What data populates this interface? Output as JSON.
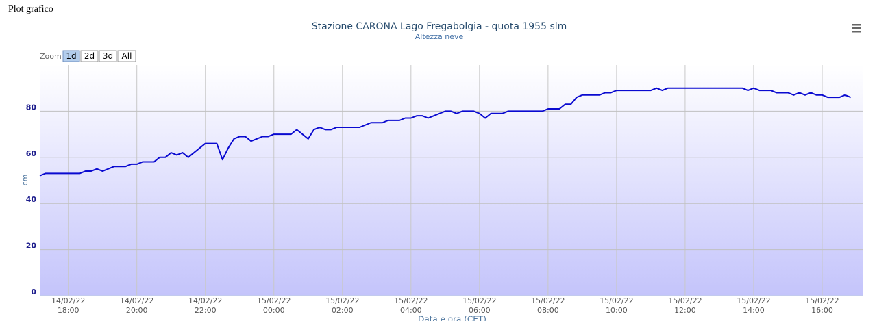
{
  "heading": "Plot grafico",
  "zoom": {
    "label": "Zoom",
    "buttons": [
      "1d",
      "2d",
      "3d",
      "All"
    ],
    "selected": 0
  },
  "chart_data": {
    "type": "line",
    "title": "Stazione CARONA Lago Fregabolgia - quota 1955 slm",
    "subtitle": "Altezza neve",
    "y_label": "cm",
    "x_label": "Data e ora (CET)",
    "color": "#0a0ad0",
    "grid": true,
    "x": [
      "14/02/22 17:10",
      "14/02/22 17:20",
      "14/02/22 18:20",
      "14/02/22 18:30",
      "14/02/22 18:40",
      "14/02/22 18:50",
      "14/02/22 19:00",
      "14/02/22 19:20",
      "14/02/22 19:40",
      "14/02/22 19:50",
      "14/02/22 20:00",
      "14/02/22 20:10",
      "14/02/22 20:30",
      "14/02/22 20:40",
      "14/02/22 20:50",
      "14/02/22 21:00",
      "14/02/22 21:10",
      "14/02/22 21:20",
      "14/02/22 21:30",
      "14/02/22 22:00",
      "14/02/22 22:20",
      "14/02/22 22:30",
      "14/02/22 22:40",
      "14/02/22 22:50",
      "14/02/22 23:00",
      "14/02/22 23:10",
      "14/02/22 23:20",
      "14/02/22 23:40",
      "14/02/22 23:50",
      "15/02/22 00:00",
      "15/02/22 00:30",
      "15/02/22 00:40",
      "15/02/22 01:00",
      "15/02/22 01:10",
      "15/02/22 01:20",
      "15/02/22 01:30",
      "15/02/22 01:40",
      "15/02/22 01:50",
      "15/02/22 02:30",
      "15/02/22 02:50",
      "15/02/22 03:10",
      "15/02/22 03:20",
      "15/02/22 03:40",
      "15/02/22 03:50",
      "15/02/22 04:00",
      "15/02/22 04:10",
      "15/02/22 04:20",
      "15/02/22 04:30",
      "15/02/22 05:00",
      "15/02/22 05:10",
      "15/02/22 05:20",
      "15/02/22 05:30",
      "15/02/22 05:50",
      "15/02/22 06:00",
      "15/02/22 06:10",
      "15/02/22 06:20",
      "15/02/22 06:40",
      "15/02/22 06:50",
      "15/02/22 07:50",
      "15/02/22 08:00",
      "15/02/22 08:20",
      "15/02/22 08:30",
      "15/02/22 08:40",
      "15/02/22 08:50",
      "15/02/22 09:00",
      "15/02/22 09:30",
      "15/02/22 09:40",
      "15/02/22 09:50",
      "15/02/22 10:00",
      "15/02/22 11:00",
      "15/02/22 11:10",
      "15/02/22 11:20",
      "15/02/22 11:30",
      "15/02/22 13:40",
      "15/02/22 13:50",
      "15/02/22 14:00",
      "15/02/22 14:10",
      "15/02/22 14:30",
      "15/02/22 14:40",
      "15/02/22 15:00",
      "15/02/22 15:10",
      "15/02/22 15:20",
      "15/02/22 15:30",
      "15/02/22 15:40",
      "15/02/22 15:50",
      "15/02/22 16:00",
      "15/02/22 16:10",
      "15/02/22 16:30",
      "15/02/22 16:40",
      "15/02/22 16:50"
    ],
    "values": [
      52,
      53,
      53,
      54,
      54,
      55,
      54,
      56,
      56,
      57,
      57,
      58,
      58,
      60,
      60,
      62,
      61,
      62,
      60,
      66,
      66,
      59,
      64,
      68,
      69,
      69,
      67,
      69,
      69,
      70,
      70,
      72,
      68,
      72,
      73,
      72,
      72,
      73,
      73,
      75,
      75,
      76,
      76,
      77,
      77,
      78,
      78,
      77,
      80,
      80,
      79,
      80,
      80,
      79,
      77,
      79,
      79,
      80,
      80,
      81,
      81,
      83,
      83,
      86,
      87,
      87,
      88,
      88,
      89,
      89,
      90,
      89,
      90,
      90,
      89,
      90,
      89,
      89,
      88,
      88,
      87,
      88,
      87,
      88,
      87,
      87,
      86,
      86,
      87,
      86
    ],
    "xlim": [
      "14/02/22 17:10",
      "15/02/22 17:12"
    ],
    "xticks": [
      {
        "date": "14/02/22",
        "time": "18:00"
      },
      {
        "date": "14/02/22",
        "time": "20:00"
      },
      {
        "date": "14/02/22",
        "time": "22:00"
      },
      {
        "date": "15/02/22",
        "time": "00:00"
      },
      {
        "date": "15/02/22",
        "time": "02:00"
      },
      {
        "date": "15/02/22",
        "time": "04:00"
      },
      {
        "date": "15/02/22",
        "time": "06:00"
      },
      {
        "date": "15/02/22",
        "time": "08:00"
      },
      {
        "date": "15/02/22",
        "time": "10:00"
      },
      {
        "date": "15/02/22",
        "time": "12:00"
      },
      {
        "date": "15/02/22",
        "time": "14:00"
      },
      {
        "date": "15/02/22",
        "time": "16:00"
      }
    ],
    "ylim": [
      0,
      100
    ],
    "yticks": [
      0,
      20,
      40,
      60,
      80
    ]
  }
}
